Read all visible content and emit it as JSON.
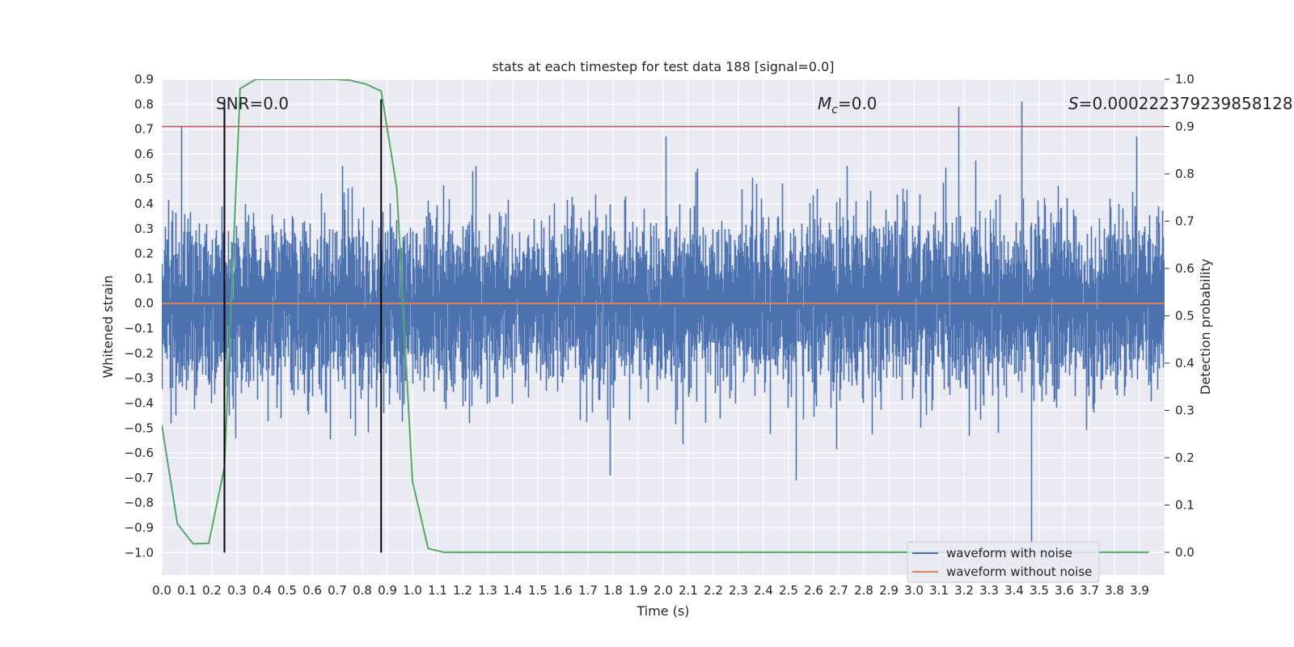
{
  "chart_data": {
    "type": "line",
    "title": "stats at each timestep for test data 188 [signal=0.0]",
    "xlabel": "Time (s)",
    "ylabel": "Whitened strain",
    "y2label": "Detection probability",
    "xlim": [
      0.0,
      4.0
    ],
    "ylim": [
      -1.09,
      0.9
    ],
    "y2lim": [
      -0.048,
      1.0
    ],
    "x_ticks": [
      0.0,
      0.1,
      0.2,
      0.3,
      0.4,
      0.5,
      0.6,
      0.7,
      0.8,
      0.9,
      1.0,
      1.1,
      1.2,
      1.3,
      1.4,
      1.5,
      1.6,
      1.7,
      1.8,
      1.9,
      2.0,
      2.1,
      2.2,
      2.3,
      2.4,
      2.5,
      2.6,
      2.7,
      2.8,
      2.9,
      3.0,
      3.1,
      3.2,
      3.3,
      3.4,
      3.5,
      3.6,
      3.7,
      3.8,
      3.9
    ],
    "x_tick_labels": [
      "0.0",
      "0.1",
      "0.2",
      "0.3",
      "0.4",
      "0.5",
      "0.6",
      "0.7",
      "0.8",
      "0.9",
      "1.0",
      "1.1",
      "1.2",
      "1.3",
      "1.4",
      "1.5",
      "1.6",
      "1.7",
      "1.8",
      "1.9",
      "2.0",
      "2.1",
      "2.2",
      "2.3",
      "2.4",
      "2.5",
      "2.6",
      "2.7",
      "2.8",
      "2.9",
      "3.0",
      "3.1",
      "3.2",
      "3.3",
      "3.4",
      "3.5",
      "3.6",
      "3.7",
      "3.8",
      "3.9"
    ],
    "y_ticks": [
      0.9,
      0.8,
      0.7,
      0.6,
      0.5,
      0.4,
      0.3,
      0.2,
      0.1,
      0.0,
      -0.1,
      -0.2,
      -0.3,
      -0.4,
      -0.5,
      -0.6,
      -0.7,
      -0.8,
      -0.9,
      -1.0
    ],
    "y_tick_labels": [
      "0.9",
      "0.8",
      "0.7",
      "0.6",
      "0.5",
      "0.4",
      "0.3",
      "0.2",
      "0.1",
      "0.0",
      "−0.1",
      "−0.2",
      "−0.3",
      "−0.4",
      "−0.5",
      "−0.6",
      "−0.7",
      "−0.8",
      "−0.9",
      "−1.0"
    ],
    "y2_ticks": [
      1.0,
      0.9,
      0.8,
      0.7,
      0.6,
      0.5,
      0.4,
      0.3,
      0.2,
      0.1,
      0.0
    ],
    "y2_tick_labels": [
      "1.0",
      "0.9",
      "0.8",
      "0.7",
      "0.6",
      "0.5",
      "0.4",
      "0.3",
      "0.2",
      "0.1",
      "0.0"
    ],
    "grid": true,
    "legend_position": "lower-right",
    "series": [
      {
        "name": "waveform with noise",
        "axis": "left",
        "color": "#4c72b0",
        "sampling_rate_hz": 2048,
        "amplitude_range": [
          -0.97,
          0.81
        ],
        "peaks": [
          {
            "x": 0.08,
            "y": 0.71
          },
          {
            "x": 3.18,
            "y": 0.79
          },
          {
            "x": 3.43,
            "y": 0.81
          },
          {
            "x": 3.47,
            "y": -0.97
          },
          {
            "x": 2.53,
            "y": -0.71
          },
          {
            "x": 1.79,
            "y": -0.69
          },
          {
            "x": 2.01,
            "y": 0.67
          },
          {
            "x": 3.89,
            "y": 0.67
          }
        ]
      },
      {
        "name": "waveform without noise",
        "axis": "left",
        "color": "#dd8452",
        "x": [
          0.0,
          4.0
        ],
        "y": [
          0.0,
          0.0
        ]
      },
      {
        "axis": "right",
        "color": "#55a868",
        "x": [
          0.0,
          0.0625,
          0.125,
          0.1875,
          0.25,
          0.3125,
          0.375,
          0.4375,
          0.5,
          0.5625,
          0.625,
          0.6875,
          0.75,
          0.8125,
          0.875,
          0.9375,
          1.0,
          1.0625,
          1.125,
          1.1875,
          1.25,
          1.5,
          2.0,
          2.5,
          3.0,
          3.5,
          3.9375
        ],
        "y": [
          0.27,
          0.06,
          0.018,
          0.019,
          0.18,
          0.98,
          1.0,
          1.0,
          1.0,
          1.0,
          1.0,
          1.0,
          0.998,
          0.99,
          0.975,
          0.77,
          0.15,
          0.008,
          0.0,
          0.0,
          0.0,
          0.0,
          0.0,
          0.0,
          0.0,
          0.0,
          0.0
        ]
      },
      {
        "axis": "right",
        "color": "#c44e52",
        "x": [
          0.0,
          4.0
        ],
        "y": [
          0.9,
          0.9
        ]
      }
    ],
    "vertical_lines": [
      {
        "x": 0.25,
        "color": "#000000"
      },
      {
        "x": 0.875,
        "color": "#000000"
      }
    ],
    "annotations": [
      {
        "text": "SNR=0.0",
        "x": 0.2,
        "y": 0.8
      },
      {
        "text": "M_c=0.0",
        "x": 2.6,
        "y": 0.8
      },
      {
        "text": "S=0.000222379239858128",
        "x": 3.6,
        "y": 0.8
      }
    ]
  }
}
